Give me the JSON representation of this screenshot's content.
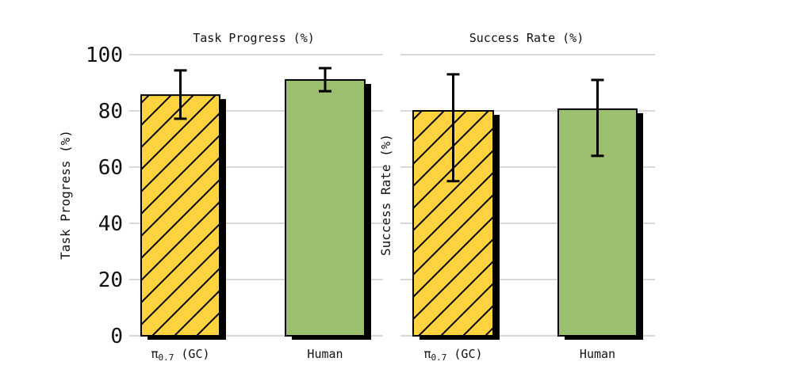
{
  "colors": {
    "hatched": "#FFD23F",
    "solid": "#9BBF6E",
    "grid": "#cccccc",
    "shadow": "#000000"
  },
  "chart_data": [
    {
      "type": "bar",
      "title": "Task Progress (%)",
      "ylabel": "Task Progress (%)",
      "xlabel": "",
      "ylim": [
        0,
        100
      ],
      "yticks": [
        "0",
        "20",
        "40",
        "60",
        "80",
        "100"
      ],
      "grid": true,
      "categories": [
        "π",
        "Human"
      ],
      "category_labels": [
        {
          "base": "π",
          "sub": "0.7",
          "suffix": " (GC)"
        },
        {
          "base": "Human",
          "sub": "",
          "suffix": ""
        }
      ],
      "values": [
        85.6,
        91.0
      ],
      "error_low": [
        77.2,
        87.0
      ],
      "error_high": [
        94.4,
        95.2
      ],
      "hatched": [
        true,
        false
      ]
    },
    {
      "type": "bar",
      "title": "Success Rate (%)",
      "ylabel": "Success Rate (%)",
      "xlabel": "",
      "ylim": [
        0,
        100
      ],
      "yticks": [],
      "grid": true,
      "categories": [
        "π",
        "Human"
      ],
      "category_labels": [
        {
          "base": "π",
          "sub": "0.7",
          "suffix": " (GC)"
        },
        {
          "base": "Human",
          "sub": "",
          "suffix": ""
        }
      ],
      "values": [
        80.0,
        80.6
      ],
      "error_low": [
        55.0,
        64.0
      ],
      "error_high": [
        93.0,
        91.0
      ],
      "hatched": [
        true,
        false
      ]
    }
  ]
}
